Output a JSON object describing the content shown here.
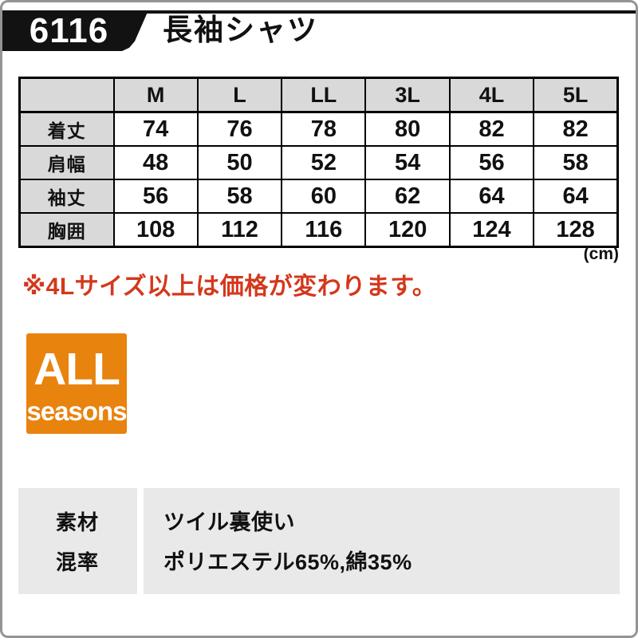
{
  "header": {
    "model_number": "6116",
    "product_title": "長袖シャツ"
  },
  "size_table": {
    "columns": [
      "M",
      "L",
      "LL",
      "3L",
      "4L",
      "5L"
    ],
    "rows": [
      {
        "label": "着丈",
        "values": [
          "74",
          "76",
          "78",
          "80",
          "82",
          "82"
        ]
      },
      {
        "label": "肩幅",
        "values": [
          "48",
          "50",
          "52",
          "54",
          "56",
          "58"
        ]
      },
      {
        "label": "袖丈",
        "values": [
          "56",
          "58",
          "60",
          "62",
          "64",
          "64"
        ]
      },
      {
        "label": "胸囲",
        "values": [
          "108",
          "112",
          "116",
          "120",
          "124",
          "128"
        ]
      }
    ],
    "unit_note": "(cm)"
  },
  "price_note": "※4Lサイズ以上は価格が変わります。",
  "season_badge": {
    "line1": "ALL",
    "line2": "seasons",
    "background_color": "#e8830e",
    "text_color": "#ffffff"
  },
  "spec_box": {
    "rows": [
      {
        "label": "素材",
        "value": "ツイル裏使い"
      },
      {
        "label": "混率",
        "value": "ポリエステル65%,綿35%"
      }
    ]
  },
  "colors": {
    "accent_black": "#121212",
    "note_red": "#d4381c",
    "badge_orange": "#e8830e",
    "table_header_gray": "#d9d9d9",
    "spec_box_gray": "#e9e9e9",
    "frame_gray": "#949494"
  }
}
